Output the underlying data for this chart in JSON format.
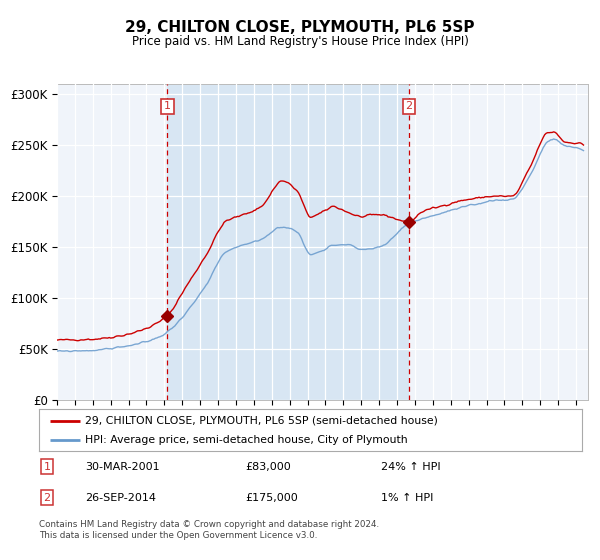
{
  "title": "29, CHILTON CLOSE, PLYMOUTH, PL6 5SP",
  "subtitle": "Price paid vs. HM Land Registry's House Price Index (HPI)",
  "legend_line1": "29, CHILTON CLOSE, PLYMOUTH, PL6 5SP (semi-detached house)",
  "legend_line2": "HPI: Average price, semi-detached house, City of Plymouth",
  "purchase1_date": "30-MAR-2001",
  "purchase1_price": 83000,
  "purchase1_label": "24% ↑ HPI",
  "purchase2_date": "26-SEP-2014",
  "purchase2_price": 175000,
  "purchase2_label": "1% ↑ HPI",
  "footer": "Contains HM Land Registry data © Crown copyright and database right 2024.\nThis data is licensed under the Open Government Licence v3.0.",
  "plot_bg_color": "#f0f4fa",
  "red_line_color": "#cc0000",
  "blue_line_color": "#6699cc",
  "shaded_region_color": "#d8e6f3",
  "grid_color": "#ffffff",
  "dashed_line_color": "#cc0000",
  "marker_color": "#990000",
  "box_edge_color": "#cc3333",
  "ylim": [
    0,
    310000
  ],
  "yticks": [
    0,
    50000,
    100000,
    150000,
    200000,
    250000,
    300000
  ],
  "ytick_labels": [
    "£0",
    "£50K",
    "£100K",
    "£150K",
    "£200K",
    "£250K",
    "£300K"
  ],
  "year_start": 1995,
  "year_end": 2024
}
